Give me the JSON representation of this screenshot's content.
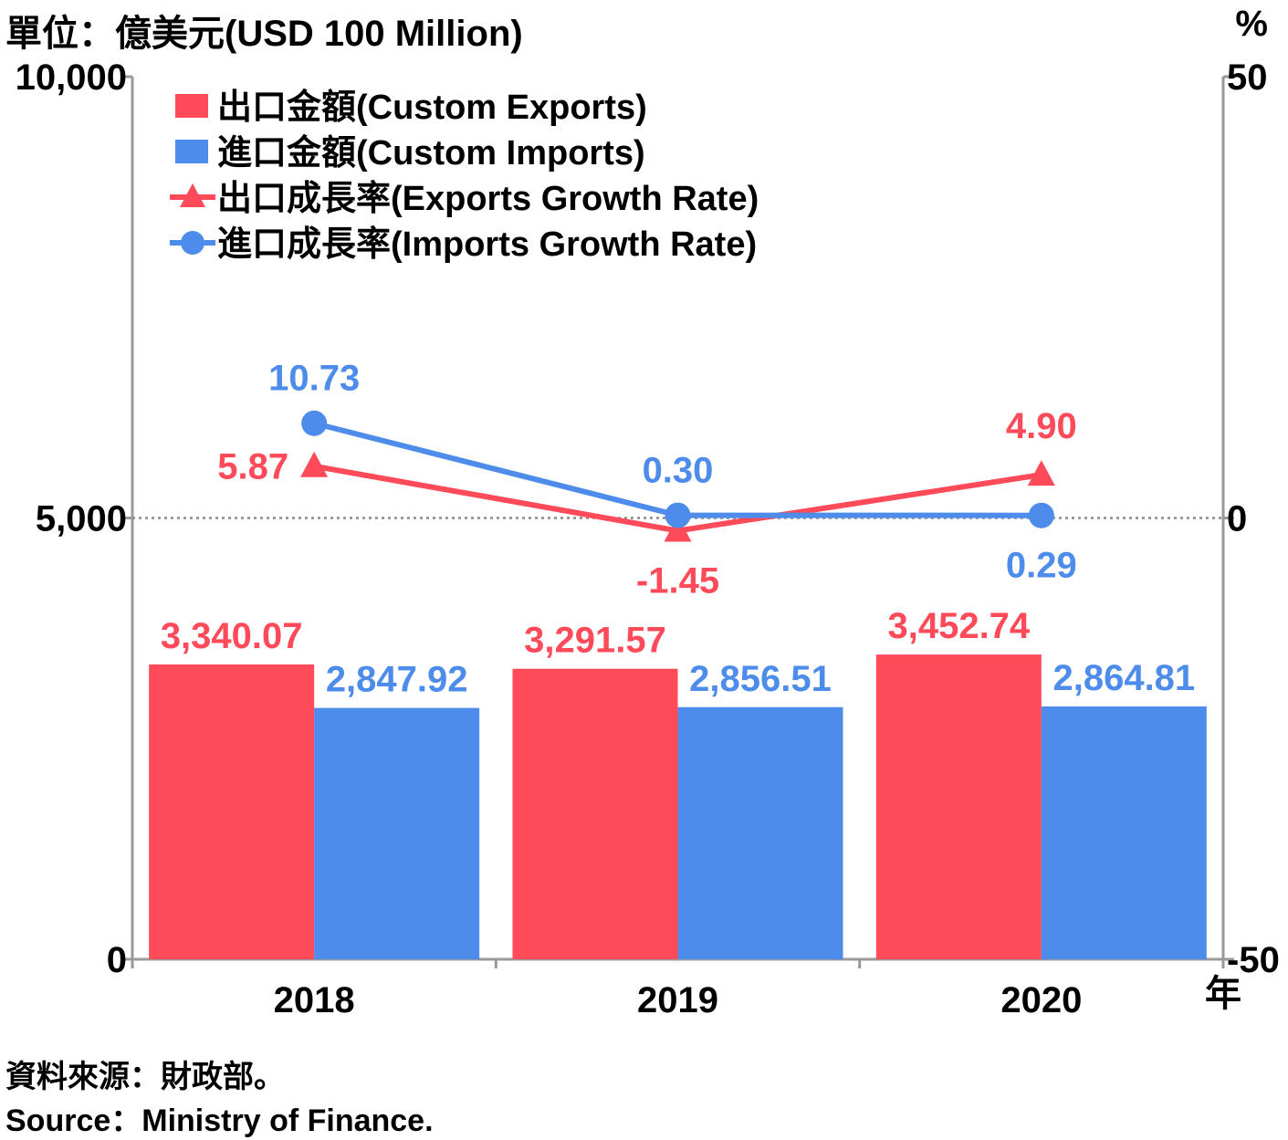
{
  "header": {
    "unit_label": "單位：億美元(USD 100 Million)",
    "right_unit_label": "%"
  },
  "footer": {
    "source_zh": "資料來源：財政部。",
    "source_en": "Source：Ministry of Finance."
  },
  "colors": {
    "exports": "#ff4a5a",
    "imports": "#4d8ceb",
    "axis": "#9a9a9a"
  },
  "chart_data": {
    "type": "bar",
    "categories": [
      "2018",
      "2019",
      "2020"
    ],
    "x_unit_label": "年",
    "y_left": {
      "ylim": [
        0,
        10000
      ],
      "ticks": [
        "0",
        "5,000",
        "10,000"
      ]
    },
    "y_right": {
      "ylim": [
        -50,
        50
      ],
      "ticks": [
        "-50",
        "0",
        "50"
      ],
      "unit": "%"
    },
    "bar_series": [
      {
        "name": "出口金額(Custom Exports)",
        "values": [
          3340.07,
          3291.57,
          3452.74
        ],
        "labels": [
          "3,340.07",
          "3,291.57",
          "3,452.74"
        ],
        "color": "#ff4a5a"
      },
      {
        "name": "進口金額(Custom Imports)",
        "values": [
          2847.92,
          2856.51,
          2864.81
        ],
        "labels": [
          "2,847.92",
          "2,856.51",
          "2,864.81"
        ],
        "color": "#4d8ceb"
      }
    ],
    "line_series": [
      {
        "name": "出口成長率(Exports Growth Rate)",
        "values": [
          5.87,
          -1.45,
          4.9
        ],
        "labels": [
          "5.87",
          "-1.45",
          "4.90"
        ],
        "marker": "triangle",
        "color": "#ff4a5a"
      },
      {
        "name": "進口成長率(Imports Growth Rate)",
        "values": [
          10.73,
          0.3,
          0.29
        ],
        "labels": [
          "10.73",
          "0.30",
          "0.29"
        ],
        "marker": "circle",
        "color": "#4d8ceb"
      }
    ],
    "reference_line": {
      "value": 0,
      "style": "dotted"
    },
    "legend": "top-left"
  }
}
